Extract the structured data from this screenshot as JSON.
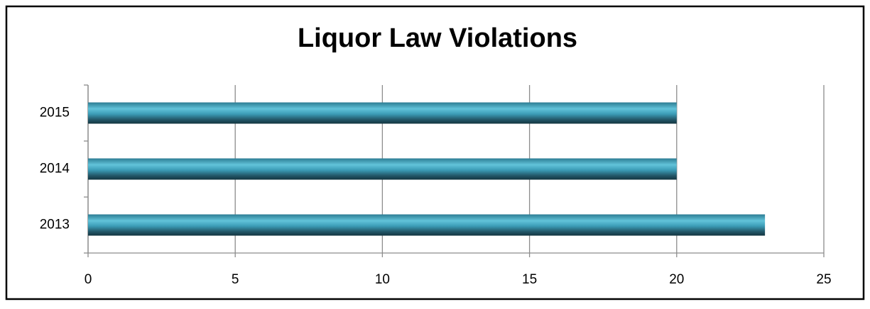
{
  "chart_data": {
    "type": "bar",
    "orientation": "horizontal",
    "title": "Liquor Law Violations",
    "categories": [
      "2013",
      "2014",
      "2015"
    ],
    "values": [
      23,
      20,
      20
    ],
    "color": "#3a9bb5",
    "xlim": [
      0,
      25
    ],
    "xticks": [
      0,
      5,
      10,
      15,
      20,
      25
    ],
    "grid": true
  }
}
